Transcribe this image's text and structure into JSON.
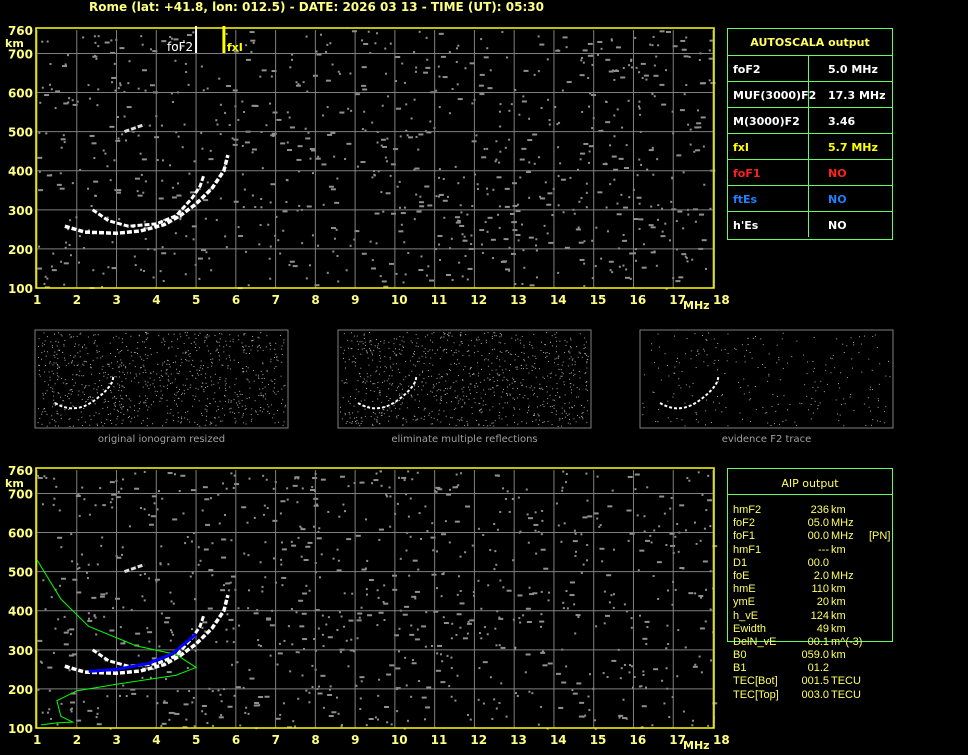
{
  "header": "Rome (lat: +41.8, lon: 012.5) - DATE: 2026 03 13 - TIME (UT): 05:30",
  "axes": {
    "x_ticks": [
      "1",
      "2",
      "3",
      "4",
      "5",
      "6",
      "7",
      "8",
      "9",
      "10",
      "11",
      "12",
      "13",
      "14",
      "15",
      "16",
      "17",
      "18"
    ],
    "x_unit": "MHz",
    "y_ticks": [
      "760",
      "700",
      "600",
      "500",
      "400",
      "300",
      "200",
      "100"
    ],
    "y_unit": "km",
    "x_range": [
      1,
      18
    ],
    "y_range": [
      100,
      760
    ]
  },
  "markers": {
    "foF2_label": "foF2",
    "foF2_value": 5.0,
    "fxI_label": "fxI",
    "fxI_value": 5.7
  },
  "autoscala": {
    "title": "AUTOSCALA output",
    "rows": [
      {
        "label": "foF2",
        "value": "5.0 MHz",
        "label_color": "#ffffff",
        "value_color": "#ffffff"
      },
      {
        "label": "MUF(3000)F2",
        "value": "17.3 MHz",
        "label_color": "#ffffff",
        "value_color": "#ffffff"
      },
      {
        "label": "M(3000)F2",
        "value": "3.46",
        "label_color": "#ffffff",
        "value_color": "#ffffff"
      },
      {
        "label": "fxI",
        "value": "5.7 MHz",
        "label_color": "#ffff00",
        "value_color": "#ffff00"
      },
      {
        "label": "foF1",
        "value": "NO",
        "label_color": "#ff2020",
        "value_color": "#ff2020"
      },
      {
        "label": "ftEs",
        "value": "NO",
        "label_color": "#2080ff",
        "value_color": "#2080ff"
      },
      {
        "label": "h'Es",
        "value": "NO",
        "label_color": "#ffffff",
        "value_color": "#ffffff"
      }
    ]
  },
  "thumbnails": [
    {
      "caption": "original ionogram resized"
    },
    {
      "caption": "eliminate multiple reflections"
    },
    {
      "caption": "evidence F2 trace"
    }
  ],
  "aip": {
    "title": "AIP output",
    "rows": [
      {
        "name": "hmF2",
        "value": "236",
        "unit": "km",
        "extra": ""
      },
      {
        "name": "foF2",
        "value": "05.0",
        "unit": "MHz",
        "extra": ""
      },
      {
        "name": "foF1",
        "value": "00.0",
        "unit": "MHz",
        "extra": "[PN]"
      },
      {
        "name": "hmF1",
        "value": "---",
        "unit": "km",
        "extra": ""
      },
      {
        "name": "D1",
        "value": "00.0",
        "unit": "",
        "extra": ""
      },
      {
        "name": "foE",
        "value": "2.0",
        "unit": "MHz",
        "extra": ""
      },
      {
        "name": "hmE",
        "value": "110",
        "unit": "km",
        "extra": ""
      },
      {
        "name": "ymE",
        "value": "20",
        "unit": "km",
        "extra": ""
      },
      {
        "name": "h_vE",
        "value": "124",
        "unit": "km",
        "extra": ""
      },
      {
        "name": "Ewidth",
        "value": "49",
        "unit": "km",
        "extra": ""
      },
      {
        "name": "DelN_vE",
        "value": "00.1",
        "unit": "m^(-3)",
        "extra": ""
      },
      {
        "name": "B0",
        "value": "059.0",
        "unit": "km",
        "extra": ""
      },
      {
        "name": "B1",
        "value": "01.2",
        "unit": "",
        "extra": ""
      },
      {
        "name": "TEC[Bot]",
        "value": "001.5",
        "unit": "TECU",
        "extra": ""
      },
      {
        "name": "TEC[Top]",
        "value": "003.0",
        "unit": "TECU",
        "extra": ""
      }
    ]
  },
  "colors": {
    "axis": "#ffff00",
    "grid": "#808080",
    "table_border": "#60ff60",
    "profile": "#00ff00",
    "fitted_trace": "#0000ff"
  }
}
